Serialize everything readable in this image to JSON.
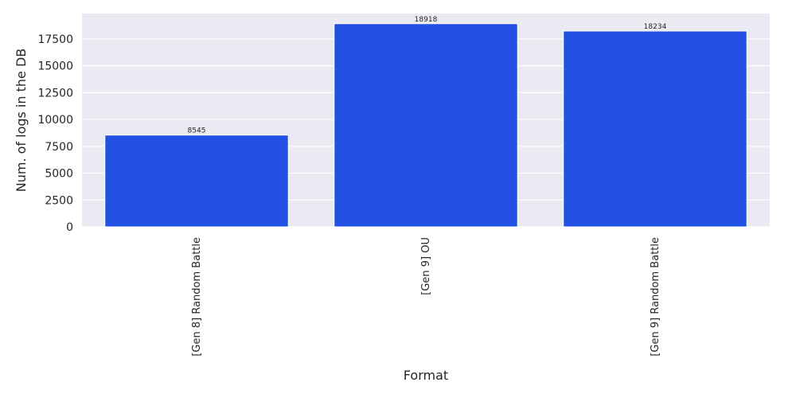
{
  "chart_data": {
    "type": "bar",
    "categories": [
      "[Gen 8] Random Battle",
      "[Gen 9] OU",
      "[Gen 9] Random Battle"
    ],
    "values": [
      8545,
      18918,
      18234
    ],
    "data_labels": [
      "8545",
      "18918",
      "18234"
    ],
    "xlabel": "Format",
    "ylabel": "Num. of logs in the DB",
    "ylim": [
      0,
      19864
    ],
    "yticks": [
      0,
      2500,
      5000,
      7500,
      10000,
      12500,
      15000,
      17500
    ],
    "ytick_labels": [
      "0",
      "2500",
      "5000",
      "7500",
      "10000",
      "12500",
      "15000",
      "17500"
    ],
    "grid": true,
    "legend": "none",
    "colors": {
      "bar": "#2250e3",
      "background": "#eaeaf2",
      "grid": "#ffffff"
    }
  }
}
